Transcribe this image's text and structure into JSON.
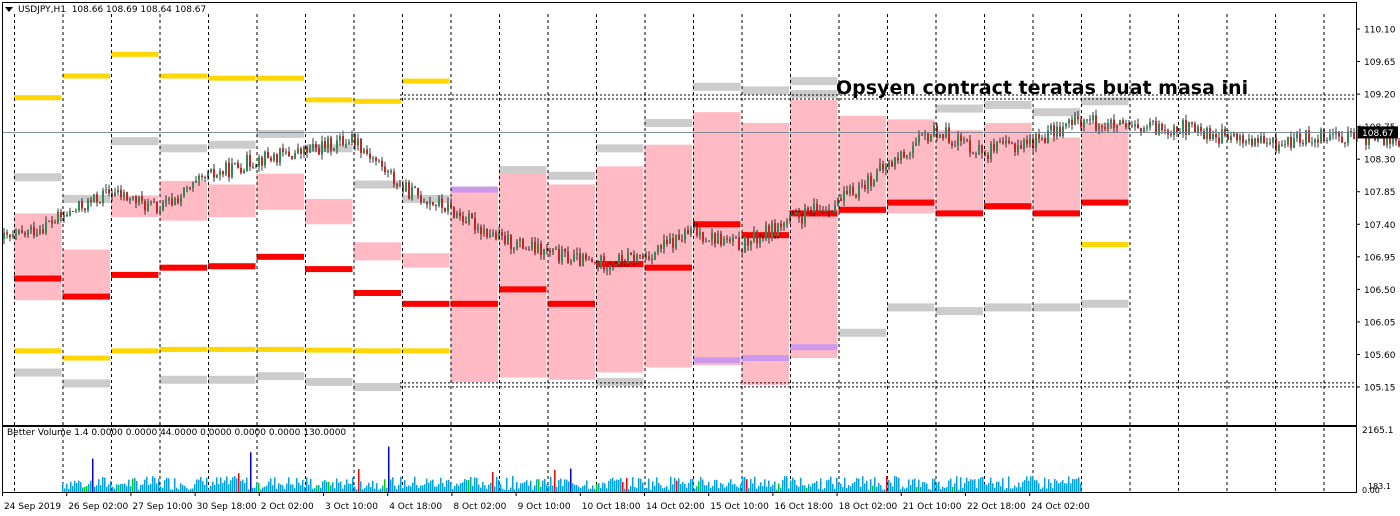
{
  "header": {
    "symbol_label": "USDJPY,H1",
    "ohlc_label": "108.66 108.69 108.64 108.67"
  },
  "annotation": "Opsyen contract teratas buat masa ini",
  "indicator": {
    "label": "Better Volume 1.4 0.0000 0.0000 44.0000 0.0000 0.0000 0.0000 130.0000",
    "axis_top": "2165.1",
    "axis_bottom_a": "183.1",
    "axis_bottom_b": "0.00"
  },
  "colors": {
    "pink_zone": "#ffb6c1",
    "strike_red": "#ff0000",
    "strike_gold": "#ffd700",
    "strike_gray": "#cccccc",
    "strike_violet": "#cc99ee",
    "candle_up": "#2e8b57",
    "candle_down": "#cc2222",
    "vol_blue": "#00a0e8",
    "vol_green": "#00cc00",
    "vol_red": "#ff0000",
    "vol_darkblue": "#0000dd"
  },
  "chart_data": {
    "type": "candlestick",
    "symbol": "USDJPY",
    "timeframe": "H1",
    "price_axis_ticks": [
      "110.10",
      "109.65",
      "109.20",
      "108.75",
      "108.30",
      "107.85",
      "107.40",
      "106.95",
      "106.50",
      "106.05",
      "105.60",
      "105.15"
    ],
    "current_price": "108.67",
    "time_axis_labels": [
      "24 Sep 2019",
      "26 Sep 02:00",
      "27 Sep 10:00",
      "30 Sep 18:00",
      "2 Oct 02:00",
      "3 Oct 10:00",
      "4 Oct 18:00",
      "8 Oct 02:00",
      "9 Oct 10:00",
      "10 Oct 18:00",
      "14 Oct 02:00",
      "15 Oct 10:00",
      "16 Oct 18:00",
      "18 Oct 02:00",
      "21 Oct 10:00",
      "22 Oct 18:00",
      "24 Oct 02:00"
    ],
    "option_range_top": 109.16,
    "option_range_bottom": 105.18,
    "price_path": [
      [
        0,
        107.2
      ],
      [
        1,
        107.5
      ],
      [
        2,
        107.85
      ],
      [
        3,
        107.6
      ],
      [
        4,
        108.05
      ],
      [
        5,
        108.3
      ],
      [
        6,
        108.4
      ],
      [
        7,
        108.6
      ],
      [
        8,
        107.9
      ],
      [
        9,
        107.6
      ],
      [
        10,
        107.2
      ],
      [
        11,
        107.0
      ],
      [
        12,
        106.85
      ],
      [
        13,
        106.95
      ],
      [
        14,
        107.3
      ],
      [
        15,
        107.1
      ],
      [
        16,
        107.45
      ],
      [
        17,
        107.7
      ],
      [
        18,
        108.2
      ],
      [
        19,
        108.7
      ],
      [
        20,
        108.4
      ],
      [
        21,
        108.55
      ],
      [
        22,
        108.85
      ],
      [
        23,
        108.7
      ],
      [
        24,
        108.75
      ],
      [
        25,
        108.6
      ],
      [
        26,
        108.5
      ],
      [
        27,
        108.65
      ],
      [
        28,
        108.6
      ],
      [
        29,
        108.5
      ],
      [
        30,
        108.7
      ],
      [
        31,
        108.6
      ],
      [
        32,
        108.67
      ]
    ],
    "daily_zones": [
      {
        "day": 0,
        "top": 107.55,
        "bottom": 106.35,
        "red": 106.65,
        "golds": [
          109.15,
          105.65
        ],
        "grays": [
          108.05,
          105.35
        ],
        "violet": null
      },
      {
        "day": 1,
        "top": 107.05,
        "bottom": 106.4,
        "red": 106.4,
        "golds": [
          109.45,
          105.55
        ],
        "grays": [
          107.75,
          105.2
        ],
        "violet": null
      },
      {
        "day": 2,
        "top": 107.8,
        "bottom": 107.5,
        "red": 106.7,
        "golds": [
          109.75,
          105.65
        ],
        "grays": [
          108.55
        ],
        "violet": null
      },
      {
        "day": 3,
        "top": 108.0,
        "bottom": 107.45,
        "red": 106.8,
        "golds": [
          109.45,
          105.67
        ],
        "grays": [
          108.45,
          105.25
        ],
        "violet": null
      },
      {
        "day": 4,
        "top": 107.95,
        "bottom": 107.5,
        "red": 106.82,
        "golds": [
          109.42,
          105.67
        ],
        "grays": [
          108.5,
          105.25
        ],
        "violet": null
      },
      {
        "day": 5,
        "top": 108.1,
        "bottom": 107.6,
        "red": 106.95,
        "golds": [
          109.42,
          105.67
        ],
        "grays": [
          108.65,
          105.3
        ],
        "violet": null
      },
      {
        "day": 6,
        "top": 107.75,
        "bottom": 107.4,
        "red": 106.78,
        "golds": [
          109.12,
          105.66
        ],
        "grays": [
          108.45,
          105.22
        ],
        "violet": null
      },
      {
        "day": 7,
        "top": 107.15,
        "bottom": 106.9,
        "red": 106.45,
        "golds": [
          109.1,
          105.65
        ],
        "grays": [
          107.95,
          105.15
        ],
        "violet": null
      },
      {
        "day": 8,
        "top": 107.0,
        "bottom": 106.8,
        "red": 106.3,
        "golds": [
          109.38,
          105.65
        ],
        "grays": [
          107.75
        ],
        "violet": null
      },
      {
        "day": 9,
        "top": 107.9,
        "bottom": 105.22,
        "red": 106.3,
        "golds": [],
        "grays": [],
        "violet": 107.88
      },
      {
        "day": 10,
        "top": 108.1,
        "bottom": 105.28,
        "red": 106.5,
        "golds": [],
        "grays": [
          108.15
        ],
        "violet": null
      },
      {
        "day": 11,
        "top": 107.95,
        "bottom": 105.25,
        "red": 106.3,
        "golds": [],
        "grays": [
          108.07
        ],
        "violet": null
      },
      {
        "day": 12,
        "top": 108.2,
        "bottom": 105.35,
        "red": 106.85,
        "golds": [],
        "grays": [
          108.45,
          105.22
        ],
        "violet": null
      },
      {
        "day": 13,
        "top": 108.5,
        "bottom": 105.42,
        "red": 106.8,
        "golds": [],
        "grays": [
          108.8
        ],
        "violet": null
      },
      {
        "day": 14,
        "top": 108.95,
        "bottom": 105.45,
        "red": 107.4,
        "golds": [],
        "grays": [
          109.3
        ],
        "violet": 105.52
      },
      {
        "day": 15,
        "top": 108.8,
        "bottom": 105.18,
        "red": 107.25,
        "golds": [],
        "grays": [
          109.25
        ],
        "violet": 105.55
      },
      {
        "day": 16,
        "top": 109.12,
        "bottom": 105.55,
        "red": 107.55,
        "golds": [],
        "grays": [
          109.38,
          109.2
        ],
        "violet": 105.7
      },
      {
        "day": 17,
        "top": 108.9,
        "bottom": 107.55,
        "red": 107.6,
        "golds": [],
        "grays": [
          105.9
        ],
        "violet": null
      },
      {
        "day": 18,
        "top": 108.85,
        "bottom": 107.55,
        "red": 107.7,
        "golds": [],
        "grays": [
          106.25
        ],
        "violet": null
      },
      {
        "day": 19,
        "top": 108.7,
        "bottom": 107.55,
        "red": 107.55,
        "golds": [],
        "grays": [
          109.0,
          106.2
        ],
        "violet": null
      },
      {
        "day": 20,
        "top": 108.8,
        "bottom": 107.6,
        "red": 107.65,
        "golds": [],
        "grays": [
          109.05,
          106.25
        ],
        "violet": null
      },
      {
        "day": 21,
        "top": 108.6,
        "bottom": 107.55,
        "red": 107.55,
        "golds": [],
        "grays": [
          108.95,
          106.25
        ],
        "violet": null
      },
      {
        "day": 22,
        "top": 108.8,
        "bottom": 107.7,
        "red": 107.7,
        "golds": [
          107.12
        ],
        "grays": [
          109.1,
          106.3
        ],
        "violet": null
      }
    ]
  }
}
